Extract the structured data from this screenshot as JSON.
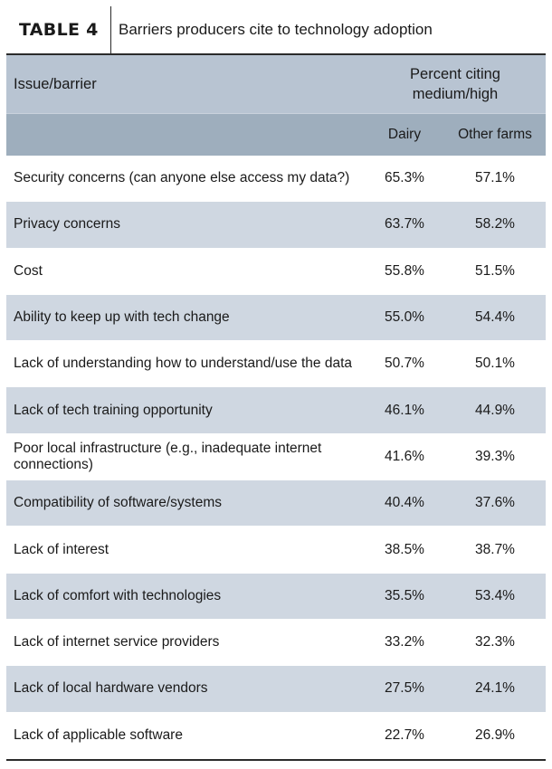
{
  "table": {
    "label": "TABLE 4",
    "title": "Barriers producers cite to technology adoption",
    "col_issue": "Issue/barrier",
    "col_group_line1": "Percent citing",
    "col_group_line2": "medium/high",
    "col_dairy": "Dairy",
    "col_other": "Other farms",
    "rows": [
      {
        "issue": "Security concerns (can anyone else access my data?)",
        "dairy": "65.3%",
        "other": "57.1%"
      },
      {
        "issue": "Privacy concerns",
        "dairy": "63.7%",
        "other": "58.2%"
      },
      {
        "issue": "Cost",
        "dairy": "55.8%",
        "other": "51.5%"
      },
      {
        "issue": "Ability to keep up with tech change",
        "dairy": "55.0%",
        "other": "54.4%"
      },
      {
        "issue": "Lack of understanding how to understand/use the data",
        "dairy": "50.7%",
        "other": "50.1%"
      },
      {
        "issue": "Lack of tech training opportunity",
        "dairy": "46.1%",
        "other": "44.9%"
      },
      {
        "issue": "Poor local infrastructure (e.g., inadequate internet connections)",
        "dairy": "41.6%",
        "other": "39.3%"
      },
      {
        "issue": "Compatibility of software/systems",
        "dairy": "40.4%",
        "other": "37.6%"
      },
      {
        "issue": "Lack of interest",
        "dairy": "38.5%",
        "other": "38.7%"
      },
      {
        "issue": "Lack of comfort with technologies",
        "dairy": "35.5%",
        "other": "53.4%"
      },
      {
        "issue": "Lack of internet service providers",
        "dairy": "33.2%",
        "other": "32.3%"
      },
      {
        "issue": "Lack of local hardware vendors",
        "dairy": "27.5%",
        "other": "24.1%"
      },
      {
        "issue": "Lack of applicable software",
        "dairy": "22.7%",
        "other": "26.9%"
      }
    ]
  }
}
